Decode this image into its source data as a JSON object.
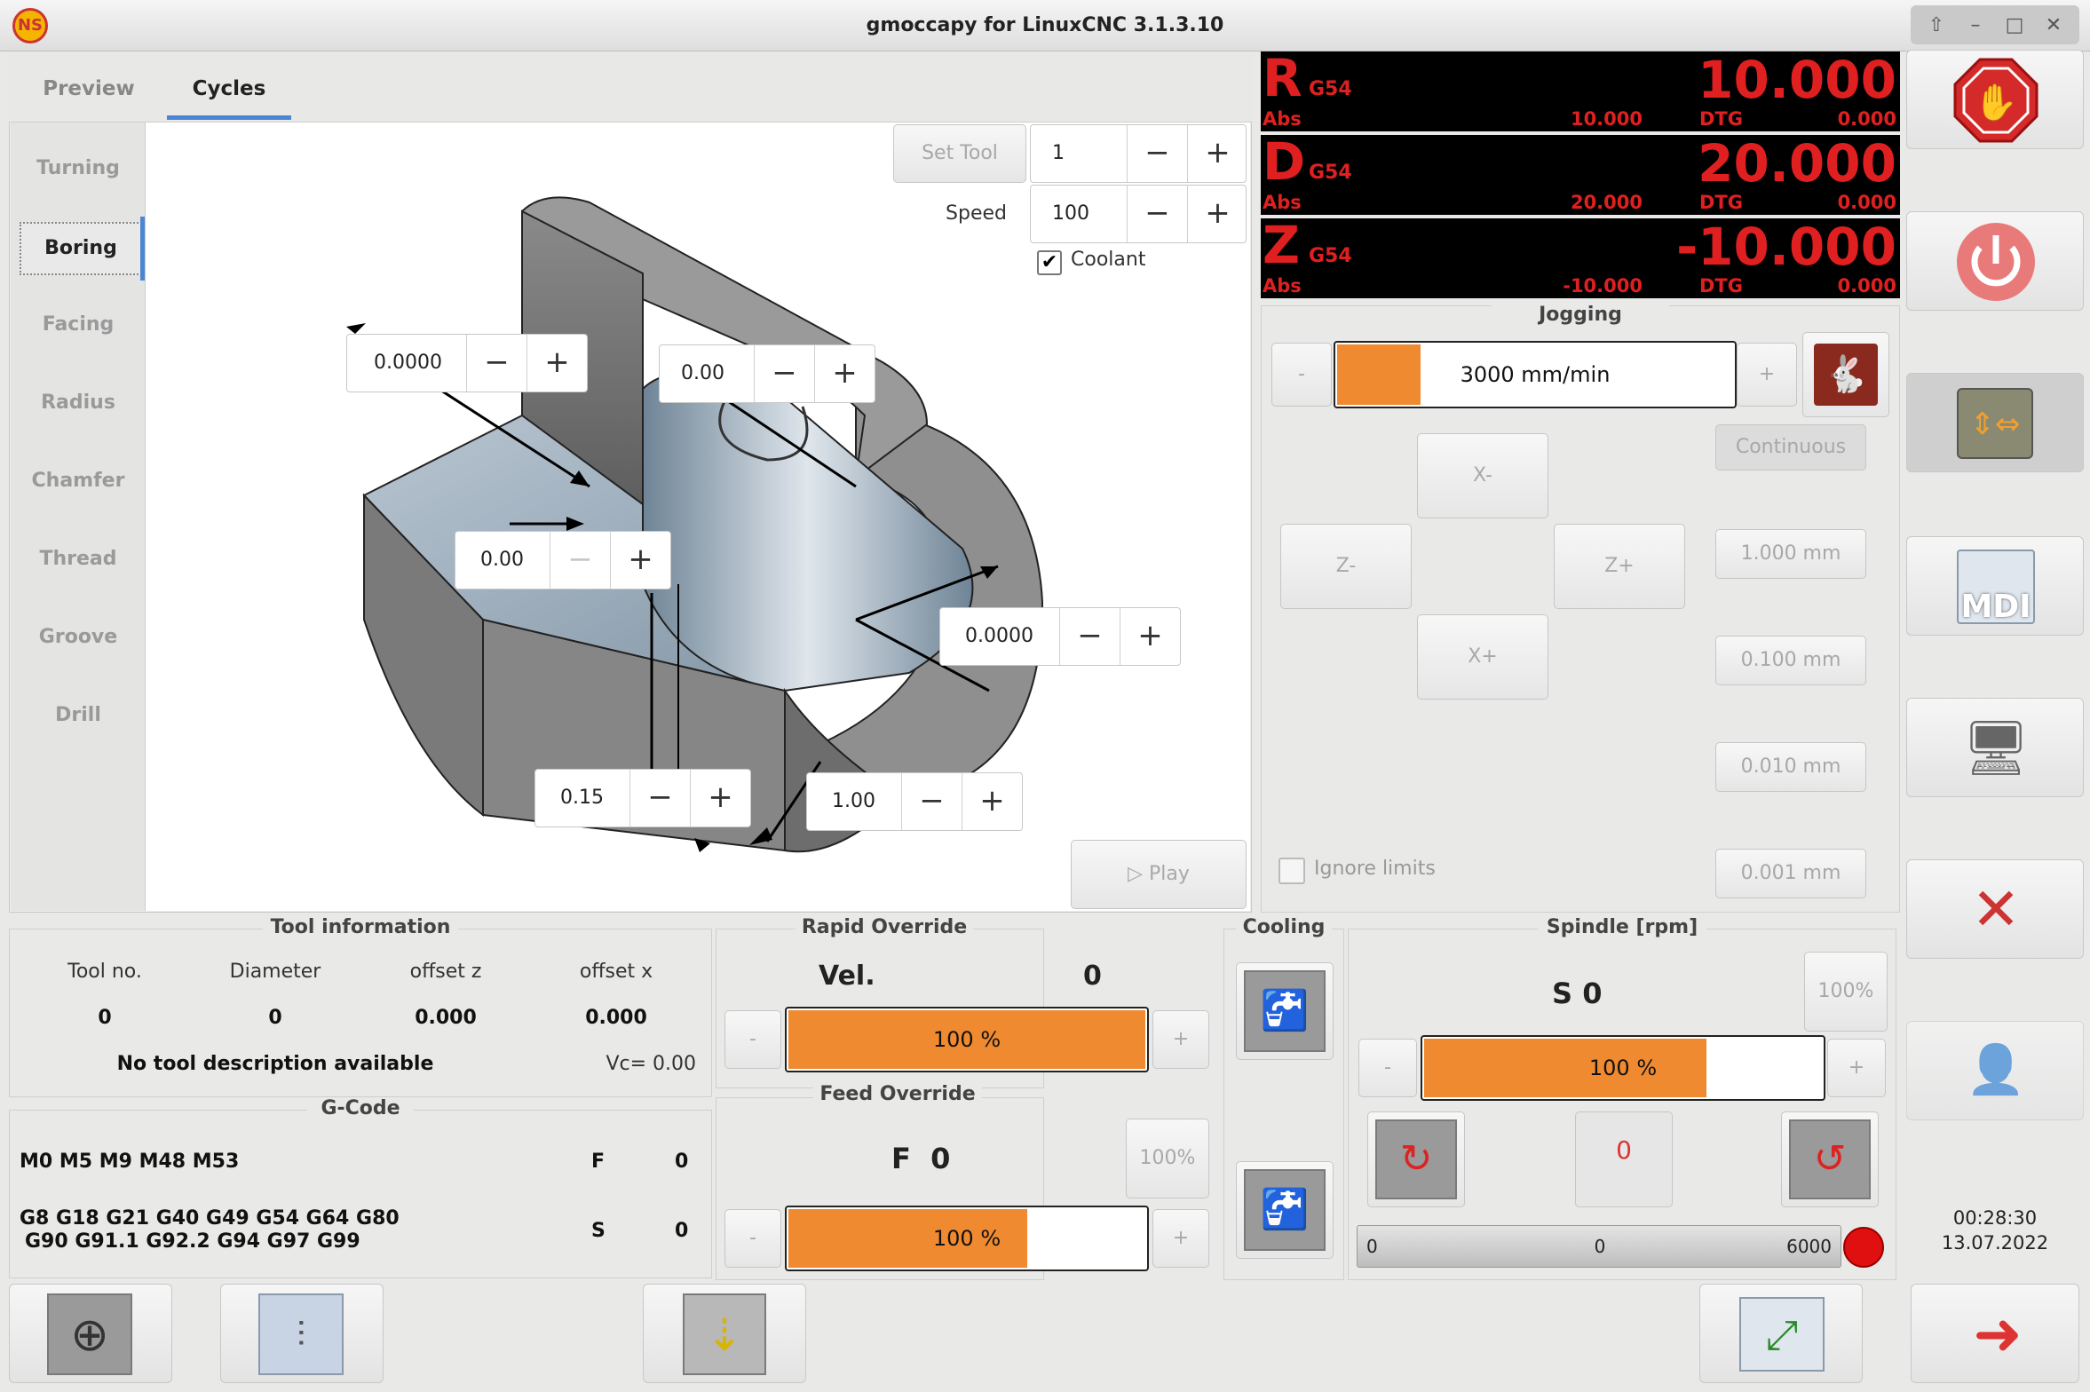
{
  "window": {
    "title": "gmoccapy for LinuxCNC  3.1.3.10",
    "logo_text": "NS"
  },
  "tabs": [
    {
      "label": "Preview"
    },
    {
      "label": "Cycles"
    }
  ],
  "cycles": {
    "items": [
      "Turning",
      "Boring",
      "Facing",
      "Radius",
      "Chamfer",
      "Thread",
      "Groove",
      "Drill"
    ],
    "active": "Boring"
  },
  "cycle_panel": {
    "set_tool_label": "Set Tool",
    "tool_value": "1",
    "speed_label": "Speed",
    "speed_value": "100",
    "coolant_label": "Coolant",
    "coolant_checked": true,
    "play_label": "Play",
    "fields": [
      "0.0000",
      "0.00",
      "0.00",
      "0.0000",
      "0.15",
      "1.00"
    ]
  },
  "dro": [
    {
      "axis": "R",
      "coord": "G54",
      "value": "10.000",
      "abs_label": "Abs",
      "abs": "10.000",
      "dtg_label": "DTG",
      "dtg": "0.000"
    },
    {
      "axis": "D",
      "coord": "G54",
      "value": "20.000",
      "abs_label": "Abs",
      "abs": "20.000",
      "dtg_label": "DTG",
      "dtg": "0.000"
    },
    {
      "axis": "Z",
      "coord": "G54",
      "value": "-10.000",
      "abs_label": "Abs",
      "abs": "-10.000",
      "dtg_label": "DTG",
      "dtg": "0.000"
    }
  ],
  "jogging": {
    "title": "Jogging",
    "minus": "-",
    "plus": "+",
    "rate": "3000 mm/min",
    "rate_fraction": 0.21,
    "x_minus": "X-",
    "x_plus": "X+",
    "z_minus": "Z-",
    "z_plus": "Z+",
    "increments": [
      "Continuous",
      "1.000 mm",
      "0.100 mm",
      "0.010 mm",
      "0.001 mm"
    ],
    "ignore_limits_label": "Ignore limits"
  },
  "tool_info": {
    "title": "Tool information",
    "headers": [
      "Tool no.",
      "Diameter",
      "offset z",
      "offset x"
    ],
    "values": [
      "0",
      "0",
      "0.000",
      "0.000"
    ],
    "description": "No tool description available",
    "vc": "Vc= 0.00"
  },
  "gcode": {
    "title": "G-Code",
    "mcodes": "M0 M5 M9 M48 M53",
    "f_label": "F",
    "f_value": "0",
    "gcodes_line1": "G8 G18 G21 G40 G49 G54 G64 G80",
    "gcodes_line2": "G90 G91.1 G92.2 G94 G97 G99",
    "s_label": "S",
    "s_value": "0"
  },
  "rapid_override": {
    "title": "Rapid Override",
    "vel_label": "Vel.",
    "vel_value": "0",
    "percent": "100 %",
    "fraction": 1.0,
    "minus": "-",
    "plus": "+"
  },
  "feed_override": {
    "title": "Feed Override",
    "label": "F  0",
    "reset": "100%",
    "percent": "100 %",
    "fraction": 0.67,
    "minus": "-",
    "plus": "+"
  },
  "cooling": {
    "title": "Cooling"
  },
  "spindle": {
    "title": "Spindle [rpm]",
    "label": "S 0",
    "reset": "100%",
    "percent": "100 %",
    "fraction": 0.71,
    "minus": "-",
    "plus": "+",
    "stop_label": "0",
    "scale_min": "0",
    "scale_mid": "0",
    "scale_max": "6000"
  },
  "clock": {
    "time": "00:28:30",
    "date": "13.07.2022"
  },
  "colors": {
    "accent": "#4a86d4",
    "dro_red": "#e02020",
    "bar_orange": "#f08a30",
    "estop_red": "#d42a2a"
  },
  "right_buttons": [
    "estop-icon",
    "power-icon",
    "jog-mode-icon",
    "mdi-icon",
    "auto-mode-icon",
    "settings-icon",
    "user-tabs-icon"
  ],
  "mdi_label": "MDI"
}
